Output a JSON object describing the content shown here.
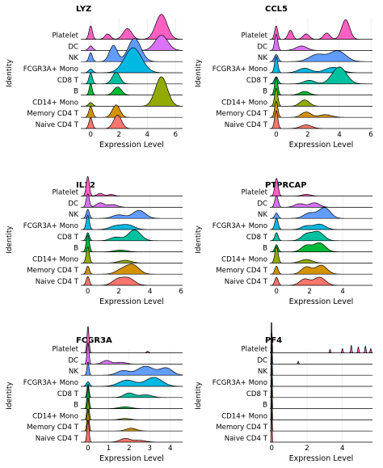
{
  "chart_data": [
    {
      "type": "ridgeline",
      "title": "LYZ",
      "xlabel": "Expression Level",
      "ylabel": "Identity",
      "xlim": [
        -0.7,
        6.5
      ],
      "xticks": [
        0,
        2,
        4,
        6
      ],
      "categories": [
        "Naive CD4 T",
        "Memory CD4 T",
        "CD14+ Mono",
        "B",
        "CD8 T",
        "FCGR3A+ Mono",
        "NK",
        "DC",
        "Platelet"
      ],
      "series": [
        {
          "values": [
            [
              0,
              1.2,
              0.12
            ],
            [
              1.9,
              1.5,
              0.28
            ]
          ]
        },
        {
          "values": [
            [
              0,
              1.2,
              0.13
            ],
            [
              1.8,
              1.4,
              0.27
            ]
          ]
        },
        {
          "values": [
            [
              0,
              0.4,
              0.15
            ],
            [
              5.0,
              3.3,
              0.42
            ]
          ]
        },
        {
          "values": [
            [
              0,
              1.3,
              0.1
            ],
            [
              1.9,
              0.9,
              0.28
            ]
          ]
        },
        {
          "values": [
            [
              0,
              1.2,
              0.12
            ],
            [
              1.8,
              1.3,
              0.27
            ]
          ]
        },
        {
          "values": [
            [
              0,
              0.4,
              0.15
            ],
            [
              3.0,
              2.8,
              0.6
            ]
          ]
        },
        {
          "values": [
            [
              0,
              1.0,
              0.12
            ],
            [
              1.6,
              1.8,
              0.28
            ],
            [
              3.1,
              2.6,
              0.45
            ]
          ]
        },
        {
          "values": [
            [
              0,
              0.5,
              0.15
            ],
            [
              5.0,
              1.7,
              0.45
            ]
          ]
        },
        {
          "values": [
            [
              0,
              1.5,
              0.12
            ],
            [
              1.2,
              0.6,
              0.2
            ],
            [
              2.6,
              1.2,
              0.3
            ],
            [
              5.0,
              2.8,
              0.4
            ]
          ]
        }
      ]
    },
    {
      "type": "ridgeline",
      "title": "CCL5",
      "xlabel": "Expression Level",
      "ylabel": "Identity",
      "xlim": [
        -0.4,
        6.1
      ],
      "xticks": [
        0,
        2,
        4,
        6
      ],
      "categories": [
        "Naive CD4 T",
        "Memory CD4 T",
        "CD14+ Mono",
        "B",
        "CD8 T",
        "FCGR3A+ Mono",
        "NK",
        "DC",
        "Platelet"
      ],
      "series": [
        {
          "values": [
            [
              0,
              2.0,
              0.1
            ],
            [
              1.9,
              0.4,
              0.35
            ]
          ]
        },
        {
          "values": [
            [
              0,
              1.8,
              0.1
            ],
            [
              1.9,
              0.6,
              0.3
            ],
            [
              3.1,
              0.3,
              0.4
            ]
          ]
        },
        {
          "values": [
            [
              0,
              2.0,
              0.1
            ],
            [
              1.8,
              0.7,
              0.3
            ]
          ]
        },
        {
          "values": [
            [
              0,
              2.0,
              0.1
            ],
            [
              1.8,
              0.4,
              0.3
            ]
          ]
        },
        {
          "values": [
            [
              0,
              0.8,
              0.12
            ],
            [
              2.1,
              0.4,
              0.35
            ],
            [
              4.0,
              1.9,
              0.45
            ]
          ]
        },
        {
          "values": [
            [
              0,
              1.8,
              0.1
            ],
            [
              1.8,
              0.5,
              0.4
            ],
            [
              3.6,
              0.6,
              0.5
            ]
          ]
        },
        {
          "values": [
            [
              0,
              0.8,
              0.12
            ],
            [
              2.6,
              0.8,
              0.5
            ],
            [
              3.9,
              1.2,
              0.5
            ]
          ]
        },
        {
          "values": [
            [
              0,
              1.8,
              0.1
            ],
            [
              1.6,
              0.5,
              0.35
            ]
          ]
        },
        {
          "values": [
            [
              0,
              1.5,
              0.1
            ],
            [
              0.9,
              1.0,
              0.15
            ],
            [
              1.9,
              0.6,
              0.2
            ],
            [
              3.2,
              0.7,
              0.2
            ],
            [
              4.4,
              2.2,
              0.25
            ]
          ]
        }
      ]
    },
    {
      "type": "ridgeline",
      "title": "IL32",
      "xlabel": "Expression Level",
      "ylabel": "Identity",
      "xlim": [
        -0.45,
        6.1
      ],
      "xticks": [
        0,
        2,
        4,
        6
      ],
      "categories": [
        "Naive CD4 T",
        "Memory CD4 T",
        "CD14+ Mono",
        "B",
        "CD8 T",
        "FCGR3A+ Mono",
        "NK",
        "DC",
        "Platelet"
      ],
      "series": [
        {
          "values": [
            [
              0,
              1.0,
              0.1
            ],
            [
              1.9,
              0.6,
              0.35
            ],
            [
              2.6,
              0.8,
              0.4
            ]
          ]
        },
        {
          "values": [
            [
              0,
              0.9,
              0.1
            ],
            [
              2.2,
              0.5,
              0.4
            ],
            [
              2.9,
              1.0,
              0.4
            ]
          ]
        },
        {
          "values": [
            [
              0,
              1.8,
              0.1
            ],
            [
              2.4,
              0.3,
              0.4
            ]
          ]
        },
        {
          "values": [
            [
              0,
              1.9,
              0.1
            ],
            [
              2.1,
              0.2,
              0.4
            ]
          ]
        },
        {
          "values": [
            [
              0,
              0.9,
              0.1
            ],
            [
              1.8,
              0.4,
              0.35
            ],
            [
              3.0,
              1.2,
              0.4
            ]
          ]
        },
        {
          "values": [
            [
              0,
              1.6,
              0.1
            ],
            [
              1.8,
              0.4,
              0.4
            ],
            [
              2.6,
              0.5,
              0.4
            ]
          ]
        },
        {
          "values": [
            [
              0,
              1.0,
              0.1
            ],
            [
              2.0,
              0.4,
              0.4
            ],
            [
              3.3,
              0.9,
              0.4
            ]
          ]
        },
        {
          "values": [
            [
              0,
              1.5,
              0.1
            ],
            [
              0.8,
              0.5,
              0.25
            ],
            [
              1.6,
              0.3,
              0.3
            ]
          ]
        },
        {
          "values": [
            [
              0,
              2.2,
              0.1
            ],
            [
              0.8,
              0.3,
              0.2
            ],
            [
              1.5,
              0.2,
              0.2
            ]
          ]
        }
      ]
    },
    {
      "type": "ridgeline",
      "title": "PTPRCAP",
      "xlabel": "Expression Level",
      "ylabel": "Identity",
      "xlim": [
        -0.4,
        5.8
      ],
      "xticks": [
        0,
        2,
        4
      ],
      "categories": [
        "Naive CD4 T",
        "Memory CD4 T",
        "CD14+ Mono",
        "B",
        "CD8 T",
        "FCGR3A+ Mono",
        "NK",
        "DC",
        "Platelet"
      ],
      "series": [
        {
          "values": [
            [
              0,
              0.9,
              0.1
            ],
            [
              1.7,
              0.7,
              0.3
            ],
            [
              2.6,
              0.9,
              0.35
            ]
          ]
        },
        {
          "values": [
            [
              0,
              0.9,
              0.1
            ],
            [
              1.8,
              0.8,
              0.3
            ],
            [
              2.7,
              1.0,
              0.35
            ]
          ]
        },
        {
          "values": [
            [
              0,
              1.8,
              0.1
            ],
            [
              1.8,
              0.4,
              0.35
            ]
          ]
        },
        {
          "values": [
            [
              0,
              0.8,
              0.1
            ],
            [
              1.8,
              0.7,
              0.3
            ],
            [
              2.6,
              1.0,
              0.35
            ]
          ]
        },
        {
          "values": [
            [
              0,
              0.9,
              0.1
            ],
            [
              1.8,
              0.7,
              0.3
            ],
            [
              2.5,
              1.0,
              0.35
            ]
          ]
        },
        {
          "values": [
            [
              0,
              1.3,
              0.1
            ],
            [
              1.8,
              0.4,
              0.3
            ],
            [
              2.6,
              0.6,
              0.35
            ]
          ]
        },
        {
          "values": [
            [
              0,
              0.6,
              0.1
            ],
            [
              2.0,
              0.6,
              0.35
            ],
            [
              2.9,
              1.2,
              0.35
            ]
          ]
        },
        {
          "values": [
            [
              0,
              1.3,
              0.1
            ],
            [
              1.4,
              0.4,
              0.3
            ],
            [
              2.3,
              0.5,
              0.3
            ]
          ]
        },
        {
          "values": [
            [
              0,
              2.0,
              0.1
            ],
            [
              1.8,
              0.2,
              0.25
            ]
          ]
        }
      ]
    },
    {
      "type": "ridgeline",
      "title": "FCGR3A",
      "xlabel": "Expression Level",
      "ylabel": "Identity",
      "xlim": [
        -0.35,
        4.6
      ],
      "xticks": [
        0,
        1,
        2,
        3,
        4
      ],
      "categories": [
        "Naive CD4 T",
        "Memory CD4 T",
        "CD14+ Mono",
        "B",
        "CD8 T",
        "FCGR3A+ Mono",
        "NK",
        "DC",
        "Platelet"
      ],
      "series": [
        {
          "values": [
            [
              0,
              2.5,
              0.05
            ],
            [
              1.8,
              0.4,
              0.25
            ],
            [
              2.5,
              0.2,
              0.3
            ]
          ]
        },
        {
          "values": [
            [
              0,
              2.5,
              0.05
            ],
            [
              2.1,
              0.3,
              0.25
            ]
          ]
        },
        {
          "values": [
            [
              0,
              2.5,
              0.05
            ],
            [
              1.8,
              0.15,
              0.25
            ]
          ]
        },
        {
          "values": [
            [
              0,
              2.5,
              0.05
            ],
            [
              1.8,
              0.2,
              0.3
            ]
          ]
        },
        {
          "values": [
            [
              0,
              1.5,
              0.05
            ],
            [
              2.0,
              0.5,
              0.25
            ],
            [
              2.8,
              0.3,
              0.3
            ]
          ]
        },
        {
          "values": [
            [
              0,
              0.5,
              0.08
            ],
            [
              1.9,
              0.7,
              0.4
            ],
            [
              3.2,
              1.0,
              0.4
            ]
          ]
        },
        {
          "values": [
            [
              0,
              1.5,
              0.05
            ],
            [
              1.7,
              0.5,
              0.3
            ],
            [
              2.8,
              1.0,
              0.4
            ],
            [
              3.8,
              0.8,
              0.3
            ]
          ]
        },
        {
          "values": [
            [
              0,
              2.4,
              0.05
            ],
            [
              0.9,
              0.4,
              0.2
            ],
            [
              1.6,
              0.2,
              0.25
            ]
          ]
        },
        {
          "values": [
            [
              0,
              3.0,
              0.05
            ],
            [
              2.9,
              0.2,
              0.05
            ]
          ]
        }
      ]
    },
    {
      "type": "ridgeline",
      "title": "PF4",
      "xlabel": "Expression Level",
      "ylabel": "Identity",
      "xlim": [
        -0.1,
        5.7
      ],
      "xticks": [
        0,
        2,
        4
      ],
      "categories": [
        "Naive CD4 T",
        "Memory CD4 T",
        "CD14+ Mono",
        "B",
        "CD8 T",
        "FCGR3A+ Mono",
        "NK",
        "DC",
        "Platelet"
      ],
      "series": [
        {
          "values": [
            [
              0,
              15,
              0.015
            ]
          ]
        },
        {
          "values": [
            [
              0,
              15,
              0.015
            ]
          ]
        },
        {
          "values": [
            [
              0,
              15,
              0.015
            ]
          ]
        },
        {
          "values": [
            [
              0,
              15,
              0.015
            ]
          ]
        },
        {
          "values": [
            [
              0,
              15,
              0.015
            ]
          ]
        },
        {
          "values": [
            [
              0,
              15,
              0.015
            ]
          ]
        },
        {
          "values": [
            [
              0,
              15,
              0.015
            ]
          ]
        },
        {
          "values": [
            [
              0,
              15,
              0.015
            ],
            [
              1.5,
              0.3,
              0.03
            ]
          ]
        },
        {
          "values": [
            [
              0,
              15,
              0.015
            ],
            [
              3.3,
              0.4,
              0.03
            ],
            [
              4.0,
              0.5,
              0.03
            ],
            [
              4.5,
              0.9,
              0.03
            ],
            [
              4.9,
              0.7,
              0.03
            ],
            [
              5.3,
              0.8,
              0.03
            ],
            [
              5.6,
              0.5,
              0.03
            ]
          ]
        }
      ]
    }
  ],
  "colors": [
    "#F8766D",
    "#D39200",
    "#93AA00",
    "#00BA38",
    "#00C19F",
    "#00B9E3",
    "#619CFF",
    "#DB72FB",
    "#FF61C3"
  ]
}
